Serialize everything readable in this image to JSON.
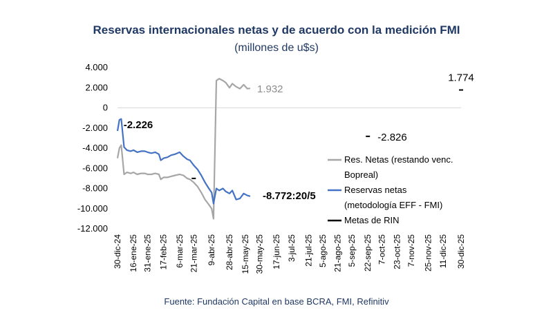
{
  "title": "Reservas internacionales netas y de acuerdo con la medición FMI",
  "subtitle": "(millones de u$s)",
  "source": "Fuente: Fundación Capital en base BCRA, FMI, Refinitiv",
  "chart_data": {
    "type": "line",
    "ylim": [
      -12000,
      4000
    ],
    "y_ticks": [
      4000,
      2000,
      0,
      -2000,
      -4000,
      -6000,
      -8000,
      -10000,
      -12000
    ],
    "y_tick_labels": [
      "4.000",
      "2.000",
      "0",
      "-2.000",
      "-4.000",
      "-6.000",
      "-8.000",
      "-10.000",
      "-12.000"
    ],
    "x_range": [
      "2024-12-30",
      "2025-12-30"
    ],
    "x_ticks": [
      "2024-12-30",
      "2025-01-16",
      "2025-01-31",
      "2025-02-17",
      "2025-03-06",
      "2025-03-21",
      "2025-04-09",
      "2025-04-28",
      "2025-05-15",
      "2025-05-30",
      "2025-06-17",
      "2025-07-03",
      "2025-07-21",
      "2025-08-05",
      "2025-08-21",
      "2025-09-05",
      "2025-09-22",
      "2025-10-07",
      "2025-10-23",
      "2025-11-07",
      "2025-11-25",
      "2025-12-11",
      "2025-12-30"
    ],
    "x_tick_labels": [
      "30-dic-24",
      "16-ene-25",
      "31-ene-25",
      "17-feb-25",
      "6-mar-25",
      "21-mar-25",
      "9-abr-25",
      "28-abr-25",
      "15-may-25",
      "30-may-25",
      "17-jun-25",
      "3-jul-25",
      "21-jul-25",
      "5-ago-25",
      "21-ago-25",
      "5-sep-25",
      "22-sep-25",
      "7-oct-25",
      "23-oct-25",
      "7-nov-25",
      "25-nov-25",
      "11-dic-25",
      "30-dic-25"
    ],
    "series": [
      {
        "name": "Res. Netas (restando venc. Bopreal)",
        "color": "#a6a6a6",
        "points": [
          [
            "2024-12-30",
            -5000
          ],
          [
            "2025-01-01",
            -4000
          ],
          [
            "2025-01-03",
            -3700
          ],
          [
            "2025-01-06",
            -6600
          ],
          [
            "2025-01-09",
            -6400
          ],
          [
            "2025-01-13",
            -6500
          ],
          [
            "2025-01-16",
            -6400
          ],
          [
            "2025-01-20",
            -6600
          ],
          [
            "2025-01-24",
            -6500
          ],
          [
            "2025-01-28",
            -6500
          ],
          [
            "2025-01-31",
            -6600
          ],
          [
            "2025-02-04",
            -6600
          ],
          [
            "2025-02-08",
            -6500
          ],
          [
            "2025-02-12",
            -6600
          ],
          [
            "2025-02-14",
            -7100
          ],
          [
            "2025-02-17",
            -6900
          ],
          [
            "2025-02-21",
            -6900
          ],
          [
            "2025-02-25",
            -6800
          ],
          [
            "2025-03-01",
            -6700
          ],
          [
            "2025-03-06",
            -6600
          ],
          [
            "2025-03-10",
            -6700
          ],
          [
            "2025-03-14",
            -7000
          ],
          [
            "2025-03-17",
            -7100
          ],
          [
            "2025-03-21",
            -7400
          ],
          [
            "2025-03-25",
            -7800
          ],
          [
            "2025-03-29",
            -8400
          ],
          [
            "2025-04-02",
            -9100
          ],
          [
            "2025-04-06",
            -9600
          ],
          [
            "2025-04-09",
            -10000
          ],
          [
            "2025-04-11",
            -11000
          ],
          [
            "2025-04-14",
            2700
          ],
          [
            "2025-04-17",
            2900
          ],
          [
            "2025-04-21",
            2700
          ],
          [
            "2025-04-24",
            2500
          ],
          [
            "2025-04-28",
            2000
          ],
          [
            "2025-05-01",
            2400
          ],
          [
            "2025-05-05",
            2100
          ],
          [
            "2025-05-09",
            1900
          ],
          [
            "2025-05-13",
            2300
          ],
          [
            "2025-05-17",
            1900
          ],
          [
            "2025-05-20",
            1932
          ]
        ]
      },
      {
        "name": "Reservas netas (metodología EFF - FMI)",
        "color": "#4472c4",
        "points": [
          [
            "2024-12-30",
            -2300
          ],
          [
            "2025-01-01",
            -1200
          ],
          [
            "2025-01-03",
            -1100
          ],
          [
            "2025-01-06",
            -3900
          ],
          [
            "2025-01-09",
            -4200
          ],
          [
            "2025-01-13",
            -4300
          ],
          [
            "2025-01-16",
            -4200
          ],
          [
            "2025-01-20",
            -4400
          ],
          [
            "2025-01-24",
            -4300
          ],
          [
            "2025-01-28",
            -4300
          ],
          [
            "2025-01-31",
            -4400
          ],
          [
            "2025-02-04",
            -4500
          ],
          [
            "2025-02-08",
            -4400
          ],
          [
            "2025-02-12",
            -4600
          ],
          [
            "2025-02-14",
            -5200
          ],
          [
            "2025-02-17",
            -5000
          ],
          [
            "2025-02-21",
            -4900
          ],
          [
            "2025-02-25",
            -4700
          ],
          [
            "2025-03-01",
            -4600
          ],
          [
            "2025-03-06",
            -4400
          ],
          [
            "2025-03-10",
            -4800
          ],
          [
            "2025-03-14",
            -5100
          ],
          [
            "2025-03-17",
            -5200
          ],
          [
            "2025-03-21",
            -5700
          ],
          [
            "2025-03-25",
            -6100
          ],
          [
            "2025-03-29",
            -6700
          ],
          [
            "2025-04-02",
            -7400
          ],
          [
            "2025-04-06",
            -8000
          ],
          [
            "2025-04-09",
            -8400
          ],
          [
            "2025-04-11",
            -9500
          ],
          [
            "2025-04-14",
            -8000
          ],
          [
            "2025-04-17",
            -8200
          ],
          [
            "2025-04-21",
            -8000
          ],
          [
            "2025-04-24",
            -8300
          ],
          [
            "2025-04-28",
            -8500
          ],
          [
            "2025-05-01",
            -8200
          ],
          [
            "2025-05-05",
            -9100
          ],
          [
            "2025-05-09",
            -9000
          ],
          [
            "2025-05-13",
            -8500
          ],
          [
            "2025-05-17",
            -8700
          ],
          [
            "2025-05-20",
            -8772
          ]
        ]
      },
      {
        "name": "Metas de RIN",
        "color": "#000000",
        "points": [
          [
            "2025-03-21",
            -7000
          ],
          [
            "2025-09-22",
            -2826
          ],
          [
            "2025-12-30",
            1774
          ]
        ]
      }
    ],
    "annotations": [
      {
        "text": "-2.226",
        "color": "#000000",
        "bold": true,
        "x": "2025-01-01",
        "y": -2226
      },
      {
        "text": "1.932",
        "color": "#8c8c8c",
        "bold": false,
        "x": "2025-05-20",
        "y": 1932
      },
      {
        "text": "-8.772:20/5",
        "color": "#000000",
        "bold": true,
        "x": "2025-05-20",
        "y": -8772
      },
      {
        "text": "-2.826",
        "color": "#000000",
        "bold": false,
        "x": "2025-09-22",
        "y": -2826
      },
      {
        "text": "1.774",
        "color": "#000000",
        "bold": false,
        "x": "2025-12-30",
        "y": 1774
      }
    ],
    "legend_position": "right",
    "legend_lines": [
      {
        "series": 0,
        "lines": [
          "Res. Netas (restando venc.",
          "Bopreal)"
        ]
      },
      {
        "series": 1,
        "lines": [
          "Reservas netas",
          "(metodología EFF - FMI)"
        ]
      },
      {
        "series": 2,
        "lines": [
          "Metas de RIN"
        ]
      }
    ],
    "grid": false
  }
}
